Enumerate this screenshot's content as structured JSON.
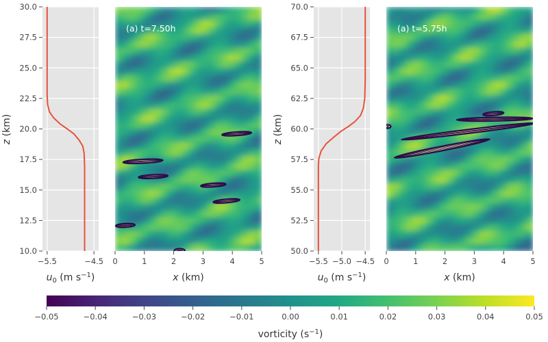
{
  "colors": {
    "profile_line": "#e8503a",
    "panel_bg": "#e5e5e5",
    "grid": "#ffffff",
    "contour_outline": "#f4f0a0",
    "contour_inner": "#2c0b4a"
  },
  "colormap": "viridis",
  "chart_data": [
    {
      "type": "line",
      "name": "u0-profile-left",
      "xlabel": "u0 (m s-1)",
      "ylabel": "z (km)",
      "xlim": [
        -5.6,
        -4.4
      ],
      "ylim": [
        10.0,
        30.0
      ],
      "x_ticks": [
        "−5.5",
        "−4.5"
      ],
      "y_ticks": [
        "10.0",
        "12.5",
        "15.0",
        "17.5",
        "20.0",
        "22.5",
        "25.0",
        "27.5",
        "30.0"
      ],
      "grid": true,
      "series": [
        {
          "x": [
            -5.5,
            -5.5,
            -5.5,
            -5.49,
            -5.45,
            -5.36,
            -5.22,
            -5.07,
            -4.93,
            -4.82,
            -4.74,
            -4.71,
            -4.7,
            -4.7,
            -4.7
          ],
          "y": [
            30.0,
            24.0,
            22.8,
            22.0,
            21.4,
            20.9,
            20.4,
            20.0,
            19.6,
            19.1,
            18.6,
            18.0,
            17.0,
            14.0,
            10.0
          ]
        }
      ]
    },
    {
      "type": "heatmap",
      "name": "vorticity-field-left",
      "annotation": "(a)  t=7.50h",
      "xlabel": "x (km)",
      "xlim": [
        0,
        5
      ],
      "ylim": [
        10.0,
        30.0
      ],
      "x_ticks": [
        "0",
        "1",
        "2",
        "3",
        "4",
        "5"
      ],
      "value_range": [
        -0.05,
        0.05
      ],
      "contours": [
        {
          "cx": 4.15,
          "cy": 19.6,
          "w": 1.0,
          "h": 0.25,
          "angle": -4
        },
        {
          "cx": 0.95,
          "cy": 17.35,
          "w": 1.35,
          "h": 0.3,
          "angle": -3
        },
        {
          "cx": 1.3,
          "cy": 16.1,
          "w": 1.0,
          "h": 0.25,
          "angle": -3
        },
        {
          "cx": 3.35,
          "cy": 15.4,
          "w": 0.85,
          "h": 0.2,
          "angle": -4
        },
        {
          "cx": 3.8,
          "cy": 14.1,
          "w": 0.9,
          "h": 0.25,
          "angle": -5
        },
        {
          "cx": 0.35,
          "cy": 12.1,
          "w": 0.65,
          "h": 0.2,
          "angle": -3
        },
        {
          "cx": 2.2,
          "cy": 10.05,
          "w": 0.35,
          "h": 0.12,
          "angle": 0
        }
      ]
    },
    {
      "type": "line",
      "name": "u0-profile-right",
      "xlabel": "u0 (m s-1)",
      "xlim": [
        -5.6,
        -4.4
      ],
      "ylim": [
        50.0,
        70.0
      ],
      "x_ticks": [
        "−5.5",
        "−5.0",
        "−4.5"
      ],
      "y_ticks": [
        "50.0",
        "52.5",
        "55.0",
        "57.5",
        "60.0",
        "62.5",
        "65.0",
        "67.5",
        "70.0"
      ],
      "grid": true,
      "series": [
        {
          "x": [
            -5.5,
            -5.5,
            -5.49,
            -5.44,
            -5.33,
            -5.18,
            -5.02,
            -4.86,
            -4.72,
            -4.6,
            -4.54,
            -4.51,
            -4.5,
            -4.5
          ],
          "y": [
            50.0,
            57.0,
            57.6,
            58.2,
            58.8,
            59.3,
            59.8,
            60.2,
            60.6,
            61.1,
            61.7,
            62.5,
            64.0,
            70.0
          ]
        }
      ]
    },
    {
      "type": "heatmap",
      "name": "vorticity-field-right",
      "annotation": "(a)  t=5.75h",
      "xlabel": "x (km)",
      "xlim": [
        0,
        5
      ],
      "ylim": [
        50.0,
        70.0
      ],
      "x_ticks": [
        "0",
        "1",
        "2",
        "3",
        "4",
        "5"
      ],
      "value_range": [
        -0.05,
        0.05
      ],
      "contours": [
        {
          "cx": 3.65,
          "cy": 61.25,
          "w": 0.7,
          "h": 0.2,
          "angle": -5
        },
        {
          "cx": 3.7,
          "cy": 60.8,
          "w": 2.6,
          "h": 0.18,
          "angle": -1
        },
        {
          "cx": 2.8,
          "cy": 59.8,
          "w": 4.6,
          "h": 0.3,
          "angle": -7
        },
        {
          "cx": 1.9,
          "cy": 58.4,
          "w": 3.3,
          "h": 0.35,
          "angle": -11
        },
        {
          "cx": 0.05,
          "cy": 60.2,
          "w": 0.2,
          "h": 0.1,
          "angle": 0
        }
      ]
    },
    {
      "type": "heatmap",
      "name": "colorbar",
      "label": "vorticity (s−1)",
      "range": [
        -0.05,
        0.05
      ],
      "ticks": [
        "−0.05",
        "−0.04",
        "−0.03",
        "−0.02",
        "−0.01",
        "0.00",
        "0.01",
        "0.02",
        "0.03",
        "0.04",
        "0.05"
      ]
    }
  ]
}
